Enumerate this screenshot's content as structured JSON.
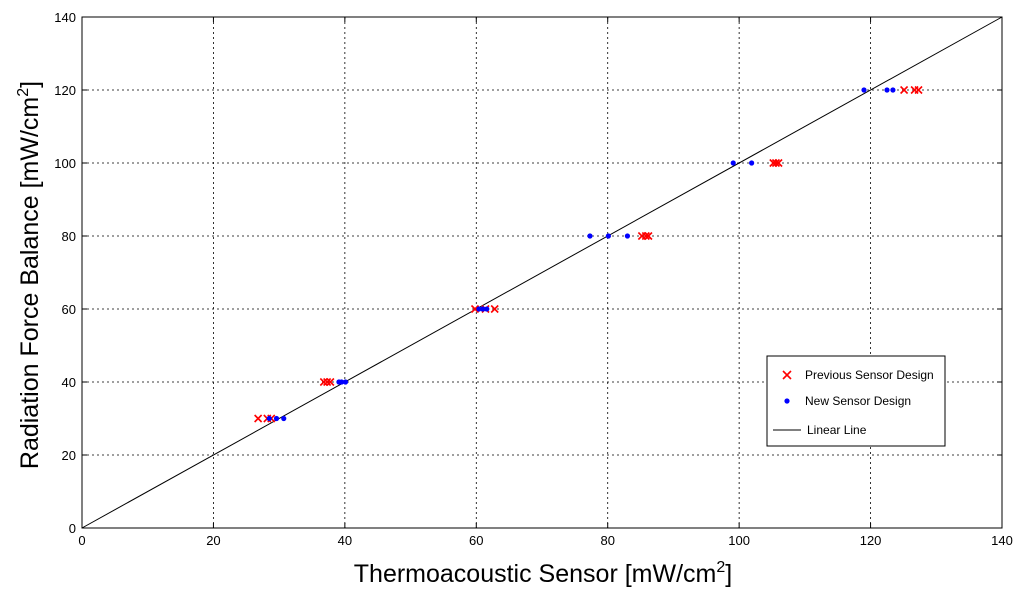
{
  "chart_data": {
    "type": "scatter",
    "xlabel": "Thermoacoustic Sensor [mW/cm",
    "xlabel_sup": "2",
    "xlabel_end": "]",
    "ylabel": "Radiation Force Balance [mW/cm",
    "ylabel_sup": "2",
    "ylabel_end": "]",
    "xlim": [
      0,
      140
    ],
    "ylim": [
      0,
      140
    ],
    "xticks": [
      0,
      20,
      40,
      60,
      80,
      100,
      120,
      140
    ],
    "yticks": [
      0,
      20,
      40,
      60,
      80,
      100,
      120,
      140
    ],
    "grid": true,
    "legend_position": "lower-right",
    "colors": {
      "previous": "#ff0000",
      "new": "#0000ff",
      "line": "#000000",
      "grid": "#000000"
    },
    "series": [
      {
        "name": "Previous Sensor Design",
        "marker": "x",
        "x": [
          26.8,
          28.2,
          28.8,
          36.8,
          37.3,
          37.8,
          59.8,
          61.4,
          62.8,
          85.2,
          85.8,
          86.2,
          105.2,
          105.6,
          106.0,
          125.1,
          126.7,
          127.3
        ],
        "y": [
          30,
          30,
          30,
          40,
          40,
          40,
          60,
          60,
          60,
          80,
          80,
          80,
          100,
          100,
          100,
          120,
          120,
          120
        ]
      },
      {
        "name": "New Sensor Design",
        "marker": "dot",
        "x": [
          28.5,
          29.6,
          30.7,
          39.1,
          39.5,
          40.1,
          60.4,
          61.0,
          61.6,
          77.3,
          80.1,
          83.0,
          99.1,
          101.9,
          119.0,
          122.5,
          123.4
        ],
        "y": [
          30,
          30,
          30,
          40,
          40,
          40,
          60,
          60,
          60,
          80,
          80,
          80,
          100,
          100,
          120,
          120,
          120
        ]
      },
      {
        "name": "Linear Line",
        "marker": "line",
        "x": [
          0,
          140
        ],
        "y": [
          0,
          140
        ]
      }
    ]
  }
}
